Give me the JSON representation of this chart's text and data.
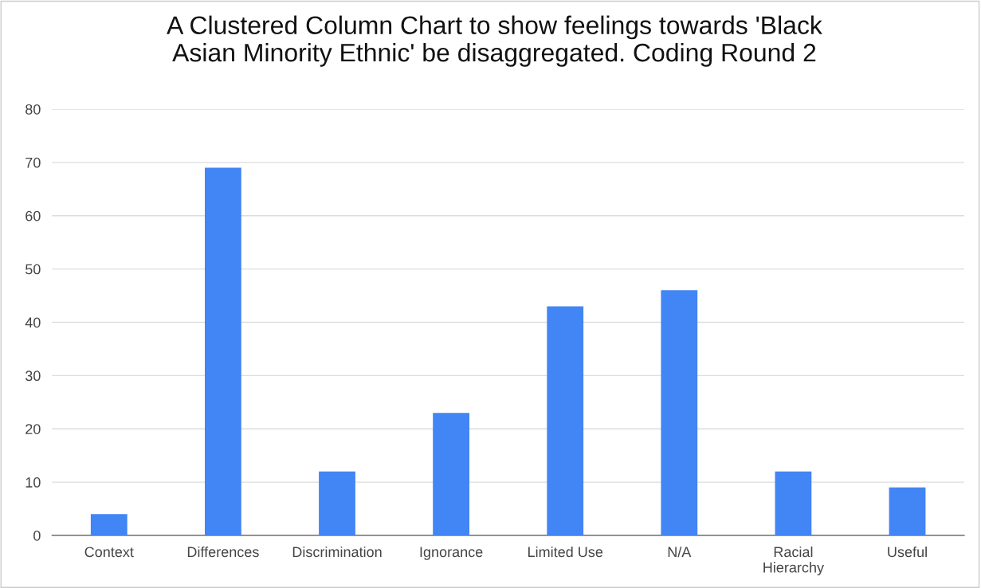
{
  "chart_data": {
    "type": "bar",
    "title": "A Clustered Column Chart to show feelings towards 'Black Asian Minority Ethnic' be disaggregated. Coding Round 2",
    "categories": [
      "Context",
      "Differences",
      "Discrimination",
      "Ignorance",
      "Limited Use",
      "N/A",
      "Racial Hierarchy",
      "Useful"
    ],
    "values": [
      4,
      69,
      12,
      23,
      43,
      46,
      12,
      9
    ],
    "color": "#4285f4",
    "ylim": [
      0,
      80
    ],
    "yticks": [
      0,
      10,
      20,
      30,
      40,
      50,
      60,
      70,
      80
    ],
    "grid": "y",
    "legend": false
  }
}
